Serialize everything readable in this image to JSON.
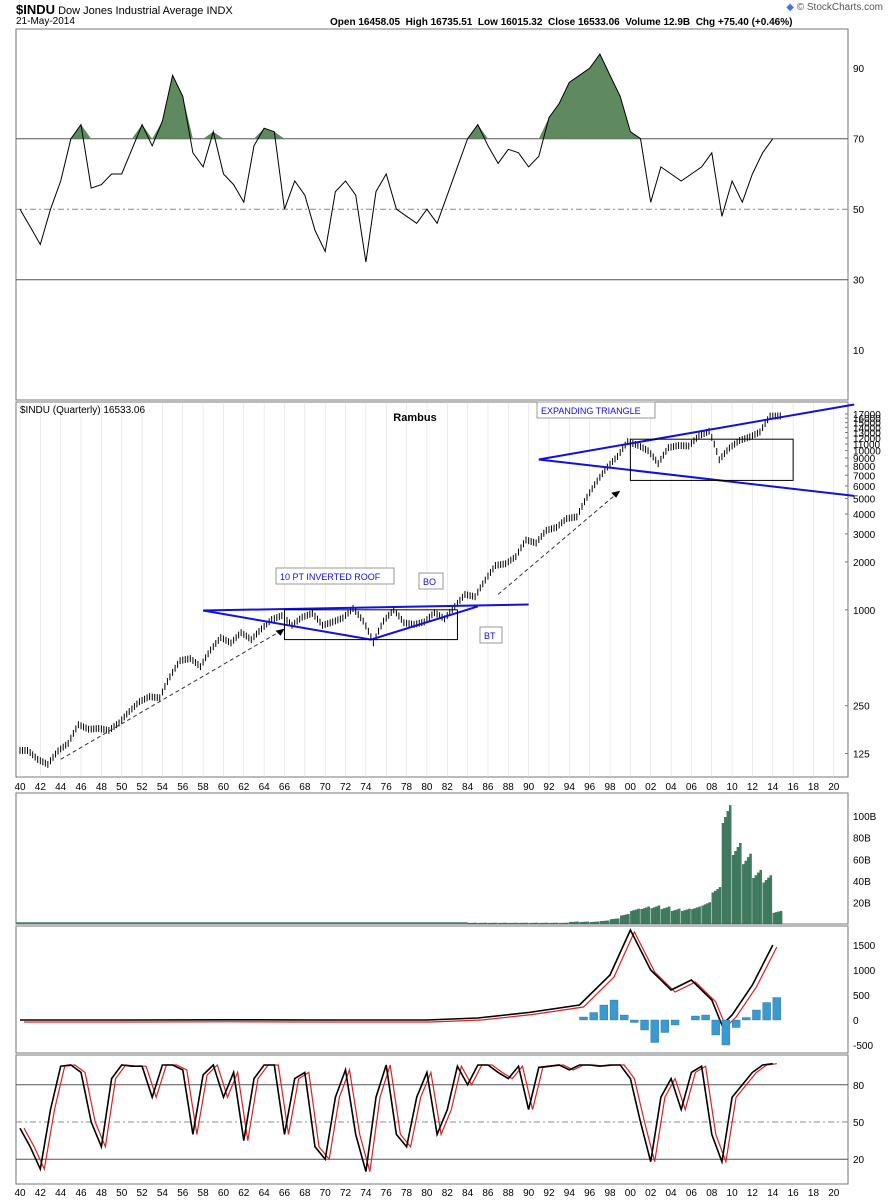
{
  "header": {
    "symbol": "$INDU",
    "name": "Dow Jones Industrial Average",
    "exchange": "INDX",
    "date": "21-May-2014",
    "open_label": "Open",
    "open": "16458.05",
    "high_label": "High",
    "high": "16735.51",
    "low_label": "Low",
    "low": "16015.32",
    "close_label": "Close",
    "close": "16533.06",
    "volume_label": "Volume",
    "volume": "12.9B",
    "chg_label": "Chg",
    "chg": "+75.40 (+0.46%)",
    "watermark": "© StockCharts.com"
  },
  "colors": {
    "price_bar": "#000000",
    "trendline": "#1010e0",
    "rsi_fill": "#5f8a5f",
    "volume": "#3f7f5f",
    "macd_hist": "#3a9ad0",
    "signal": "#e02020",
    "grid": "#d8d8d8"
  },
  "annotations": {
    "rambus": "Rambus",
    "inverted_roof": "10 PT INVERTED ROOF",
    "bo": "BO",
    "bt": "BT",
    "expanding_triangle": "EXPANDING TRIANGLE"
  },
  "chart_data": [
    {
      "type": "line",
      "panel": "indicator-top",
      "y_ticks": [
        "90",
        "70",
        "50",
        "30",
        "10"
      ],
      "ylim": [
        0,
        100
      ],
      "reference_lines": [
        70,
        50,
        30
      ],
      "x": [
        1940,
        1941,
        1942,
        1943,
        1944,
        1945,
        1946,
        1947,
        1948,
        1949,
        1950,
        1951,
        1952,
        1953,
        1954,
        1955,
        1956,
        1957,
        1958,
        1959,
        1960,
        1961,
        1962,
        1963,
        1964,
        1965,
        1966,
        1967,
        1968,
        1969,
        1970,
        1971,
        1972,
        1973,
        1974,
        1975,
        1976,
        1977,
        1978,
        1979,
        1980,
        1981,
        1982,
        1983,
        1984,
        1985,
        1986,
        1987,
        1988,
        1989,
        1990,
        1991,
        1992,
        1993,
        1994,
        1995,
        1996,
        1997,
        1998,
        1999,
        2000,
        2001,
        2002,
        2003,
        2004,
        2005,
        2006,
        2007,
        2008,
        2009,
        2010,
        2011,
        2012,
        2013,
        2014
      ],
      "values": [
        50,
        45,
        40,
        50,
        58,
        70,
        74,
        56,
        57,
        60,
        60,
        67,
        74,
        68,
        75,
        88,
        82,
        66,
        62,
        72,
        60,
        57,
        52,
        68,
        73,
        72,
        50,
        58,
        54,
        44,
        38,
        55,
        58,
        54,
        35,
        55,
        60,
        50,
        48,
        46,
        50,
        46,
        54,
        62,
        70,
        74,
        68,
        63,
        67,
        66,
        62,
        65,
        76,
        80,
        86,
        88,
        90,
        94,
        88,
        82,
        72,
        70,
        52,
        62,
        60,
        58,
        60,
        62,
        66,
        48,
        58,
        52,
        60,
        66,
        70
      ]
    },
    {
      "type": "line",
      "panel": "price",
      "title": "$INDU (Quarterly) 16533.06",
      "scale": "log",
      "y_ticks": [
        "17000",
        "16000",
        "15000",
        "14000",
        "13000",
        "12000",
        "11000",
        "10000",
        "9000",
        "8000",
        "7000",
        "6000",
        "5000",
        "4000",
        "3000",
        "2000",
        "1000",
        "250",
        "125"
      ],
      "x_ticks": [
        "40",
        "42",
        "44",
        "46",
        "48",
        "50",
        "52",
        "54",
        "56",
        "58",
        "60",
        "62",
        "64",
        "66",
        "68",
        "70",
        "72",
        "74",
        "76",
        "78",
        "80",
        "82",
        "84",
        "86",
        "88",
        "90",
        "92",
        "94",
        "96",
        "98",
        "00",
        "02",
        "04",
        "06",
        "08",
        "10",
        "12",
        "14",
        "16",
        "18",
        "20"
      ],
      "x": [
        1940,
        1941,
        1942,
        1943,
        1944,
        1945,
        1946,
        1947,
        1948,
        1949,
        1950,
        1951,
        1952,
        1953,
        1954,
        1955,
        1956,
        1957,
        1958,
        1959,
        1960,
        1961,
        1962,
        1963,
        1964,
        1965,
        1966,
        1967,
        1968,
        1969,
        1970,
        1971,
        1972,
        1973,
        1974,
        1975,
        1976,
        1977,
        1978,
        1979,
        1980,
        1981,
        1982,
        1983,
        1984,
        1985,
        1986,
        1987,
        1988,
        1989,
        1990,
        1991,
        1992,
        1993,
        1994,
        1995,
        1996,
        1997,
        1998,
        1999,
        2000,
        2001,
        2002,
        2003,
        2004,
        2005,
        2006,
        2007,
        2008,
        2009,
        2010,
        2011,
        2012,
        2013,
        2014
      ],
      "values": [
        131,
        115,
        107,
        130,
        145,
        190,
        178,
        180,
        175,
        195,
        230,
        265,
        285,
        280,
        380,
        480,
        495,
        440,
        560,
        670,
        620,
        720,
        650,
        760,
        870,
        920,
        800,
        900,
        950,
        800,
        840,
        890,
        1020,
        850,
        620,
        850,
        1000,
        830,
        810,
        840,
        960,
        880,
        1050,
        1250,
        1210,
        1540,
        1900,
        1950,
        2160,
        2750,
        2630,
        3160,
        3300,
        3750,
        3840,
        5100,
        6450,
        7900,
        9200,
        11400,
        10800,
        10000,
        8300,
        10450,
        10780,
        10700,
        12400,
        13250,
        8770,
        10400,
        11600,
        12200,
        13100,
        16500,
        16533
      ],
      "unit": "points"
    },
    {
      "type": "bar",
      "panel": "volume",
      "y_ticks": [
        "100B",
        "80B",
        "60B",
        "40B",
        "20B"
      ],
      "unit": "shares (billions)",
      "x": [
        1984,
        1985,
        1986,
        1987,
        1988,
        1989,
        1990,
        1991,
        1992,
        1993,
        1994,
        1995,
        1996,
        1997,
        1998,
        1999,
        2000,
        2001,
        2002,
        2003,
        2004,
        2005,
        2006,
        2007,
        2008,
        2009,
        2010,
        2011,
        2012,
        2013,
        2014
      ],
      "values": [
        1,
        1,
        1,
        1,
        1,
        1,
        1,
        1,
        1,
        1,
        2,
        2,
        2,
        3,
        5,
        9,
        14,
        16,
        17,
        16,
        14,
        14,
        16,
        20,
        34,
        110,
        75,
        65,
        50,
        45,
        12
      ]
    },
    {
      "type": "line",
      "panel": "macd",
      "y_ticks": [
        "1500",
        "1000",
        "500",
        "0",
        "-500"
      ],
      "series": [],
      "x": [
        1940,
        1950,
        1960,
        1970,
        1980,
        1985,
        1990,
        1995,
        1998,
        2000,
        2002,
        2004,
        2006,
        2008,
        2009,
        2010,
        2012,
        2014
      ],
      "values": [
        0,
        0,
        5,
        0,
        0,
        40,
        150,
        300,
        900,
        1800,
        1000,
        600,
        800,
        400,
        -100,
        100,
        700,
        1500
      ]
    },
    {
      "type": "line",
      "panel": "stochastic",
      "y_ticks": [
        "80",
        "50",
        "20"
      ],
      "ylim": [
        0,
        100
      ],
      "reference_lines": [
        80,
        50,
        20
      ],
      "x": [
        1940,
        1941,
        1942,
        1943,
        1944,
        1945,
        1946,
        1947,
        1948,
        1949,
        1950,
        1951,
        1952,
        1953,
        1954,
        1955,
        1956,
        1957,
        1958,
        1959,
        1960,
        1961,
        1962,
        1963,
        1964,
        1965,
        1966,
        1967,
        1968,
        1969,
        1970,
        1971,
        1972,
        1973,
        1974,
        1975,
        1976,
        1977,
        1978,
        1979,
        1980,
        1981,
        1982,
        1983,
        1984,
        1985,
        1986,
        1987,
        1988,
        1989,
        1990,
        1991,
        1992,
        1993,
        1994,
        1995,
        1996,
        1997,
        1998,
        1999,
        2000,
        2001,
        2002,
        2003,
        2004,
        2005,
        2006,
        2007,
        2008,
        2009,
        2010,
        2011,
        2012,
        2013,
        2014
      ],
      "values": [
        45,
        30,
        12,
        60,
        95,
        96,
        90,
        50,
        30,
        85,
        96,
        95,
        95,
        70,
        96,
        96,
        92,
        40,
        88,
        96,
        70,
        90,
        35,
        85,
        96,
        96,
        40,
        85,
        90,
        30,
        20,
        70,
        92,
        40,
        10,
        70,
        96,
        40,
        30,
        70,
        90,
        40,
        60,
        95,
        80,
        96,
        96,
        90,
        85,
        95,
        60,
        94,
        95,
        96,
        92,
        96,
        96,
        95,
        96,
        96,
        85,
        50,
        18,
        70,
        85,
        60,
        90,
        95,
        40,
        18,
        70,
        80,
        90,
        96,
        97
      ]
    }
  ],
  "x_axis_bottom": [
    "40",
    "42",
    "44",
    "46",
    "48",
    "50",
    "52",
    "54",
    "56",
    "58",
    "60",
    "62",
    "64",
    "66",
    "68",
    "70",
    "72",
    "74",
    "76",
    "78",
    "80",
    "82",
    "84",
    "86",
    "88",
    "90",
    "92",
    "94",
    "96",
    "98",
    "00",
    "02",
    "04",
    "06",
    "08",
    "10",
    "12",
    "14",
    "16",
    "18",
    "20"
  ]
}
